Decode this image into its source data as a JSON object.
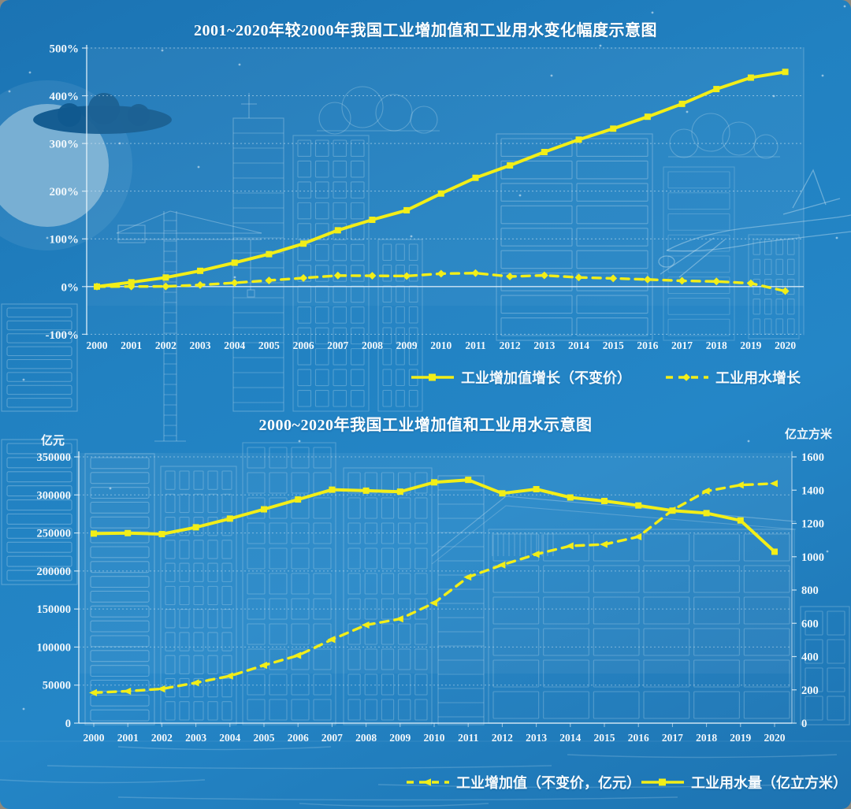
{
  "page": {
    "type": "infographic",
    "theme": "blueprint-night-cityscape",
    "background_color": "#2080c0",
    "accent_color": "#f2ee18",
    "text_color": "#ffffff",
    "decor_elements": [
      "moon",
      "clouds",
      "stars",
      "airplane",
      "tower-crane",
      "city-buildings",
      "water-ripples"
    ]
  },
  "chart_data": [
    {
      "type": "line",
      "title": "2001~2020年较2000年我国工业增加值和工业用水变化幅度示意图",
      "categories": [
        2000,
        2001,
        2002,
        2003,
        2004,
        2005,
        2006,
        2007,
        2008,
        2009,
        2010,
        2011,
        2012,
        2013,
        2014,
        2015,
        2016,
        2017,
        2018,
        2019,
        2020
      ],
      "y_axis": {
        "unit": "%",
        "min": -100,
        "max": 500,
        "tick_step": 100,
        "tick_labels": [
          "500%",
          "400%",
          "300%",
          "200%",
          "100%",
          "0%",
          "-100%"
        ]
      },
      "grid": true,
      "legend_position": "bottom",
      "series": [
        {
          "name": "工业增加值增长（不变价）",
          "line_style": "solid",
          "marker": "square",
          "color": "#f2ee18",
          "values_pct": [
            0,
            9,
            19,
            33,
            50,
            68,
            90,
            118,
            140,
            160,
            195,
            228,
            254,
            282,
            308,
            331,
            356,
            383,
            414,
            438,
            450
          ]
        },
        {
          "name": "工业用水增长",
          "line_style": "dashed",
          "marker": "diamond",
          "color": "#f2ee18",
          "values_pct": [
            0,
            0.2,
            0.3,
            3.3,
            7.9,
            12.8,
            18,
            23.2,
            22.7,
            22.1,
            27.1,
            28.3,
            21.2,
            23.5,
            19.1,
            17.2,
            14.8,
            12.1,
            10.8,
            6.9,
            -9.5
          ]
        }
      ]
    },
    {
      "type": "line",
      "title": "2000~2020年我国工业增加值和工业用水示意图",
      "categories": [
        2000,
        2001,
        2002,
        2003,
        2004,
        2005,
        2006,
        2007,
        2008,
        2009,
        2010,
        2011,
        2012,
        2013,
        2014,
        2015,
        2016,
        2017,
        2018,
        2019,
        2020
      ],
      "left_axis": {
        "label": "亿元",
        "min": 0,
        "max": 350000,
        "tick_step": 50000,
        "tick_labels": [
          "0",
          "50000",
          "100000",
          "150000",
          "200000",
          "250000",
          "300000",
          "350000"
        ]
      },
      "right_axis": {
        "label": "亿立方米",
        "min": 0,
        "max": 1600,
        "tick_step": 200,
        "tick_labels": [
          "0",
          "200",
          "400",
          "600",
          "800",
          "1000",
          "1200",
          "1400",
          "1600"
        ]
      },
      "grid": true,
      "legend_position": "bottom",
      "series": [
        {
          "name": "工业增加值（不变价，亿元）",
          "axis": "left",
          "line_style": "dashed",
          "marker": "triangle",
          "color": "#f2ee18",
          "values": [
            40000,
            42000,
            45000,
            53000,
            62000,
            76000,
            89000,
            110000,
            129000,
            137000,
            158000,
            192000,
            208000,
            222000,
            233000,
            235000,
            245000,
            280000,
            305000,
            313000,
            315000
          ]
        },
        {
          "name": "工业用水量（亿立方米）",
          "axis": "right",
          "line_style": "solid",
          "marker": "square",
          "color": "#f2ee18",
          "values": [
            1139,
            1142,
            1136,
            1177,
            1229,
            1285,
            1344,
            1403,
            1397,
            1391,
            1447,
            1462,
            1381,
            1406,
            1356,
            1335,
            1308,
            1277,
            1262,
            1218,
            1030
          ]
        }
      ]
    }
  ]
}
